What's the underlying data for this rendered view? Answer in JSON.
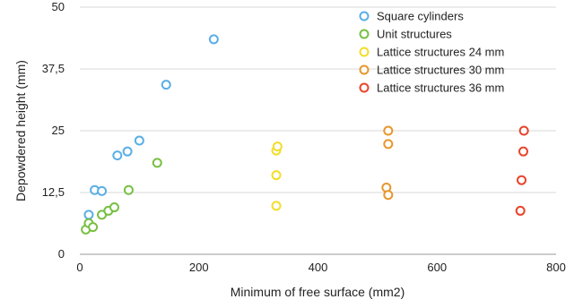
{
  "chart_data": {
    "type": "scatter",
    "title": "",
    "xlabel": "Minimum of free surface (mm2)",
    "ylabel": "Depowdered height (mm)",
    "xlim": [
      0,
      800
    ],
    "ylim": [
      0,
      50
    ],
    "xticks": [
      0,
      200,
      400,
      600,
      800
    ],
    "xtick_labels": [
      "0",
      "200",
      "400",
      "600",
      "800"
    ],
    "yticks": [
      0,
      12.5,
      25,
      37.5,
      50
    ],
    "ytick_labels": [
      "0",
      "12,5",
      "25",
      "37,5",
      "50"
    ],
    "grid": "horizontal",
    "legend_position": "top-right",
    "marker": "hollow-circle",
    "series": [
      {
        "name": "Square cylinders",
        "color": "#5aaee6",
        "points": [
          [
            15,
            8
          ],
          [
            25,
            13
          ],
          [
            37,
            12.8
          ],
          [
            63,
            20
          ],
          [
            80,
            20.8
          ],
          [
            100,
            23
          ],
          [
            145,
            34.3
          ],
          [
            225,
            43.5
          ]
        ]
      },
      {
        "name": "Unit structures",
        "color": "#77c043",
        "points": [
          [
            10,
            5
          ],
          [
            15,
            6.3
          ],
          [
            22,
            5.5
          ],
          [
            37,
            8
          ],
          [
            48,
            8.8
          ],
          [
            58,
            9.5
          ],
          [
            82,
            13
          ],
          [
            130,
            18.5
          ]
        ]
      },
      {
        "name": "Lattice structures 24 mm",
        "color": "#f2dd2a",
        "points": [
          [
            330,
            9.8
          ],
          [
            330,
            16
          ],
          [
            330,
            21
          ],
          [
            332,
            21.8
          ]
        ]
      },
      {
        "name": "Lattice structures 30 mm",
        "color": "#e8962c",
        "points": [
          [
            515,
            13.5
          ],
          [
            518,
            12
          ],
          [
            518,
            22.3
          ],
          [
            518,
            25
          ]
        ]
      },
      {
        "name": "Lattice structures 36 mm",
        "color": "#e8452c",
        "points": [
          [
            740,
            8.8
          ],
          [
            742,
            15
          ],
          [
            745,
            20.8
          ],
          [
            746,
            25
          ]
        ]
      }
    ]
  }
}
